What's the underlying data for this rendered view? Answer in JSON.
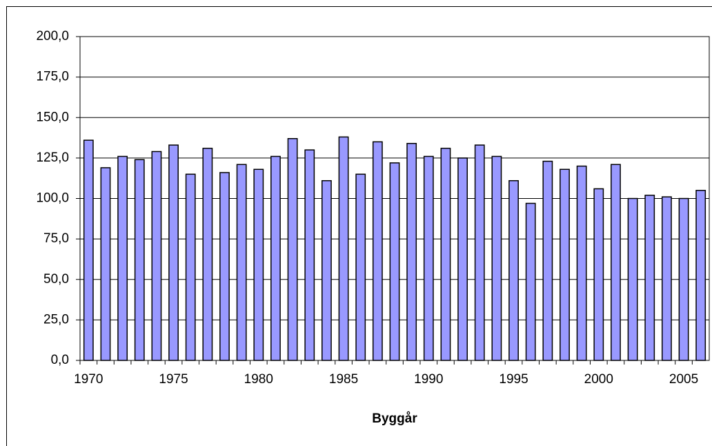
{
  "chart_data": {
    "type": "bar",
    "x_label": "Byggår",
    "categories": [
      "1970",
      null,
      null,
      null,
      null,
      "1975",
      null,
      null,
      null,
      null,
      "1980",
      null,
      null,
      null,
      null,
      "1985",
      null,
      null,
      null,
      null,
      "1990",
      null,
      null,
      null,
      null,
      "1995",
      null,
      null,
      null,
      null,
      "2000",
      null,
      null,
      null,
      null,
      "2005",
      null
    ],
    "values": [
      136,
      119,
      126,
      124,
      129,
      133,
      115,
      131,
      116,
      121,
      118,
      126,
      137,
      130,
      111,
      138,
      115,
      135,
      122,
      134,
      126,
      131,
      125,
      133,
      126,
      111,
      97,
      123,
      118,
      120,
      106,
      121,
      100,
      102,
      101,
      100,
      105
    ],
    "color": "#9999ff",
    "ylim": [
      0,
      200
    ],
    "yticks": [
      {
        "value": 0,
        "label": "0,0"
      },
      {
        "value": 25,
        "label": "25,0"
      },
      {
        "value": 50,
        "label": "50,0"
      },
      {
        "value": 75,
        "label": "75,0"
      },
      {
        "value": 100,
        "label": "100,0"
      },
      {
        "value": 125,
        "label": "125,0"
      },
      {
        "value": 150,
        "label": "150,0"
      },
      {
        "value": 175,
        "label": "175,0"
      },
      {
        "value": 200,
        "label": "200,0"
      }
    ],
    "grid": true
  }
}
